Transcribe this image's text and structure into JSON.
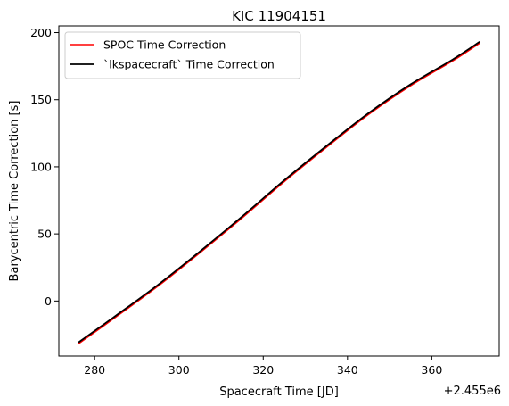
{
  "chart_data": {
    "type": "line",
    "title": "KIC 11904151",
    "xlabel": "Spacecraft Time [JD]",
    "ylabel": "Barycentric Time Correction [s]",
    "x_offset_label": "+2.455e6",
    "xlim": [
      271.5,
      376.0
    ],
    "ylim": [
      -41,
      205
    ],
    "xticks": [
      280,
      300,
      320,
      340,
      360
    ],
    "yticks": [
      0,
      50,
      100,
      150,
      200
    ],
    "grid": false,
    "legend_position": "upper-left",
    "series": [
      {
        "name": "SPOC Time Correction",
        "color": "#ff0000",
        "x": [
          276.3,
          285,
          295,
          305,
          315,
          325,
          335,
          345,
          355,
          365,
          371.3
        ],
        "y": [
          -31.5,
          -12,
          11,
          36,
          62,
          89,
          114.5,
          139,
          160.5,
          179,
          192
        ]
      },
      {
        "name": "`lkspacecraft` Time Correction",
        "color": "#000000",
        "x": [
          276.3,
          285,
          295,
          305,
          315,
          325,
          335,
          345,
          355,
          365,
          371.3
        ],
        "y": [
          -30.5,
          -11,
          12,
          37,
          63,
          90,
          115.5,
          140,
          161.5,
          180,
          193
        ]
      }
    ]
  }
}
